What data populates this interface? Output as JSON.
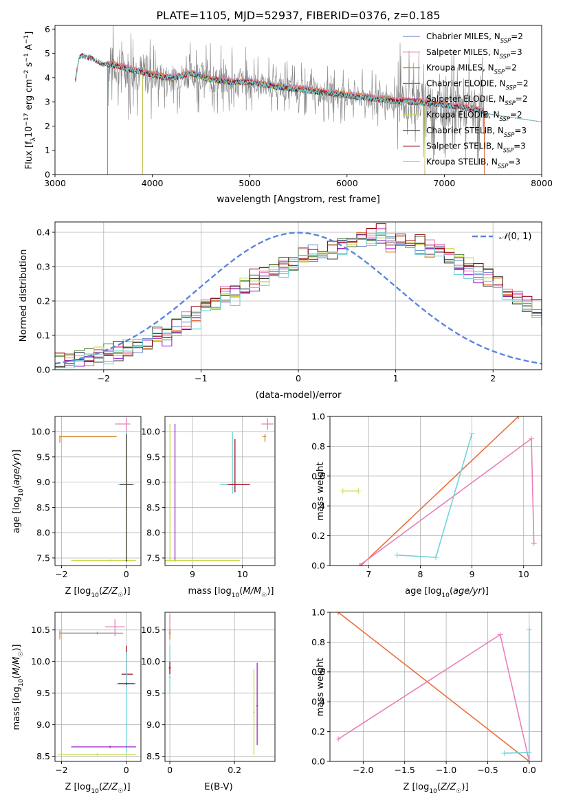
{
  "figure_title": "PLATE=1105, MJD=52937, FIBERID=0376, z=0.185",
  "colors": {
    "Chabrier MILES": "#7b94d3",
    "Salpeter MILES": "#e87fb8",
    "Kroupa MILES": "#cf8a2a",
    "Chabrier ELODIE": "#5c8a4a",
    "Salpeter ELODIE": "#9b28c9",
    "Kroupa ELODIE": "#cbd94a",
    "Chabrier STELIB": "#3a3a3a",
    "Salpeter STELIB": "#9e0a1a",
    "Kroupa STELIB": "#6fd3d8",
    "normal": "#5b86d9",
    "observed": "#808080",
    "model_orange": "#e8703a"
  },
  "chart_data": [
    {
      "type": "line",
      "name": "spectrum",
      "xlabel": "wavelength [Angstrom, rest frame]",
      "ylabel": "Flux [f_λ 10^-17 erg cm^-2 s^-1 A^-1]",
      "xlim": [
        3000,
        8000
      ],
      "ylim": [
        0,
        6.15
      ],
      "xticks": [
        3000,
        4000,
        5000,
        6000,
        7000,
        8000
      ],
      "yticks": [
        0,
        1,
        2,
        3,
        4,
        5,
        6
      ],
      "grid": false,
      "legend_position": "top-right",
      "legend": [
        {
          "label": "Chabrier MILES, N",
          "sub": "SSP",
          "tail": "=2",
          "key": "Chabrier MILES"
        },
        {
          "label": "Salpeter MILES, N",
          "sub": "SSP",
          "tail": "=3",
          "key": "Salpeter MILES"
        },
        {
          "label": "Kroupa MILES, N",
          "sub": "SSP",
          "tail": "=2",
          "key": "Kroupa MILES"
        },
        {
          "label": "Chabrier ELODIE, N",
          "sub": "SSP",
          "tail": "=2",
          "key": "Chabrier ELODIE"
        },
        {
          "label": "Salpeter ELODIE, N",
          "sub": "SSP",
          "tail": "=2",
          "key": "Salpeter ELODIE"
        },
        {
          "label": "Kroupa ELODIE, N",
          "sub": "SSP",
          "tail": "=2",
          "key": "Kroupa ELODIE"
        },
        {
          "label": "Chabrier STELIB, N",
          "sub": "SSP",
          "tail": "=3",
          "key": "Chabrier STELIB"
        },
        {
          "label": "Salpeter STELIB, N",
          "sub": "SSP",
          "tail": "=3",
          "key": "Salpeter STELIB"
        },
        {
          "label": "Kroupa STELIB, N",
          "sub": "SSP",
          "tail": "=3",
          "key": "Kroupa STELIB"
        }
      ],
      "continuum": [
        [
          3210,
          3.9
        ],
        [
          3250,
          4.85
        ],
        [
          3300,
          4.9
        ],
        [
          3400,
          4.75
        ],
        [
          3500,
          4.55
        ],
        [
          3600,
          4.5
        ],
        [
          3700,
          4.4
        ],
        [
          3800,
          4.3
        ],
        [
          3900,
          4.2
        ],
        [
          4000,
          4.1
        ],
        [
          4200,
          3.95
        ],
        [
          4400,
          4.15
        ],
        [
          4600,
          3.9
        ],
        [
          4800,
          3.8
        ],
        [
          5000,
          3.8
        ],
        [
          5200,
          3.65
        ],
        [
          5400,
          3.55
        ],
        [
          5600,
          3.45
        ],
        [
          5800,
          3.35
        ],
        [
          6000,
          3.25
        ],
        [
          6200,
          3.15
        ],
        [
          6400,
          3.05
        ],
        [
          6600,
          3.0
        ],
        [
          6800,
          2.95
        ],
        [
          7000,
          2.85
        ],
        [
          7200,
          2.75
        ],
        [
          7400,
          2.6
        ]
      ],
      "model_ranges": {
        "MILES": [
          3540,
          7410
        ],
        "ELODIE": [
          3900,
          6800
        ],
        "STELIB": [
          3210,
          8000
        ]
      }
    },
    {
      "type": "area",
      "name": "residual_histogram",
      "xlabel": "(data-model)/error",
      "ylabel": "Normed distribution",
      "xlim": [
        -2.5,
        2.5
      ],
      "ylim": [
        0,
        0.43
      ],
      "xticks": [
        -2,
        -1,
        0,
        1,
        2
      ],
      "yticks": [
        0.0,
        0.1,
        0.2,
        0.3,
        0.4
      ],
      "grid": true,
      "legend_position": "top-right",
      "legend_label": "N(0,1)",
      "bin_width": 0.1,
      "base_shape": [
        0.02,
        0.03,
        0.03,
        0.04,
        0.04,
        0.05,
        0.05,
        0.06,
        0.07,
        0.08,
        0.1,
        0.1,
        0.12,
        0.14,
        0.15,
        0.18,
        0.19,
        0.22,
        0.22,
        0.24,
        0.26,
        0.27,
        0.29,
        0.3,
        0.31,
        0.33,
        0.34,
        0.35,
        0.35,
        0.36,
        0.37,
        0.38,
        0.38,
        0.39,
        0.37,
        0.38,
        0.36,
        0.37,
        0.35,
        0.34,
        0.33,
        0.31,
        0.3,
        0.28,
        0.27,
        0.25,
        0.23,
        0.21,
        0.19,
        0.17,
        0.15,
        0.14,
        0.12,
        0.11,
        0.09,
        0.08,
        0.07,
        0.06,
        0.05,
        0.04,
        0.03,
        0.03,
        0.02,
        0.02,
        0.02,
        0.01,
        0.01,
        0.01,
        0.01,
        0.01
      ],
      "series_offsets": [
        0.0,
        0.008,
        -0.006,
        0.004,
        -0.008,
        0.006,
        -0.003,
        0.01,
        -0.01
      ],
      "series_order": [
        "Chabrier MILES",
        "Salpeter MILES",
        "model_orange",
        "Chabrier ELODIE",
        "Salpeter ELODIE",
        "Kroupa ELODIE",
        "Chabrier STELIB",
        "Salpeter STELIB",
        "Kroupa STELIB"
      ]
    },
    {
      "type": "scatter",
      "name": "age_vs_Z",
      "xlabel": "Z [log10(Z/Z☉)]",
      "ylabel": "age [log10(age/yr)]",
      "xlim": [
        -2.2,
        0.45
      ],
      "ylim": [
        7.35,
        10.3
      ],
      "xticks": [
        -2,
        0
      ],
      "yticks": [
        7.5,
        8.0,
        8.5,
        9.0,
        9.5,
        10.0
      ],
      "grid": true
    },
    {
      "type": "scatter",
      "name": "age_vs_mass",
      "xlabel": "mass [log10(M/M☉)]",
      "ylabel": "",
      "xlim": [
        8.45,
        10.65
      ],
      "ylim": [
        7.35,
        10.3
      ],
      "xticks": [
        9,
        10
      ],
      "yticks": [
        7.5,
        8.0,
        8.5,
        9.0,
        9.5,
        10.0
      ],
      "grid": true
    },
    {
      "type": "line",
      "name": "massweight_vs_age",
      "xlabel": "age [log10(age/yr)]",
      "ylabel": "mass weight",
      "xlim": [
        6.25,
        10.35
      ],
      "ylim": [
        0,
        1
      ],
      "xticks": [
        7,
        8,
        9,
        10
      ],
      "yticks": [
        0.0,
        0.2,
        0.4,
        0.6,
        0.8,
        1.0
      ],
      "grid": true,
      "series": [
        {
          "name": "Kroupa MILES",
          "x": [
            6.85,
            9.9
          ],
          "y": [
            0.0,
            1.0
          ]
        },
        {
          "name": "Salpeter MILES",
          "x": [
            6.82,
            10.15,
            10.2
          ],
          "y": [
            0.0,
            0.85,
            0.15
          ]
        },
        {
          "name": "Kroupa STELIB",
          "x": [
            7.55,
            8.3,
            9.0
          ],
          "y": [
            0.07,
            0.055,
            0.885
          ]
        },
        {
          "name": "Kroupa ELODIE",
          "x": [
            6.5,
            6.8
          ],
          "y": [
            0.5,
            0.5
          ]
        }
      ]
    },
    {
      "type": "scatter",
      "name": "mass_vs_Z",
      "xlabel": "Z [log10(Z/Z☉)]",
      "ylabel": "mass [log10(M/M☉)]",
      "xlim": [
        -2.2,
        0.45
      ],
      "ylim": [
        8.42,
        10.78
      ],
      "xticks": [
        -2,
        0
      ],
      "yticks": [
        8.5,
        9.0,
        9.5,
        10.0,
        10.5
      ],
      "grid": true
    },
    {
      "type": "scatter",
      "name": "mass_vs_EBV",
      "xlabel": "E(B-V)",
      "ylabel": "",
      "xlim": [
        -0.015,
        0.325
      ],
      "ylim": [
        8.42,
        10.78
      ],
      "xticks": [
        0.0,
        0.2
      ],
      "yticks": [
        8.5,
        9.0,
        9.5,
        10.0,
        10.5
      ],
      "grid": true
    },
    {
      "type": "line",
      "name": "massweight_vs_Z",
      "xlabel": "Z [log10(Z/Z☉)]",
      "ylabel": "mass weight",
      "xlim": [
        -2.4,
        0.15
      ],
      "ylim": [
        0,
        1
      ],
      "xticks": [
        -2.0,
        -1.5,
        -1.0,
        -0.5,
        0.0
      ],
      "yticks": [
        0.0,
        0.2,
        0.4,
        0.6,
        0.8,
        1.0
      ],
      "grid": true,
      "series": [
        {
          "name": "Kroupa MILES",
          "x": [
            -2.3,
            0.0
          ],
          "y": [
            1.0,
            0.0
          ]
        },
        {
          "name": "Salpeter MILES",
          "x": [
            -2.3,
            -0.35,
            0.0
          ],
          "y": [
            0.15,
            0.85,
            0.0
          ]
        },
        {
          "name": "Kroupa STELIB",
          "x": [
            -0.3,
            0.0,
            0.0,
            0.0
          ],
          "y": [
            0.055,
            0.06,
            0.885,
            0.0
          ]
        }
      ]
    }
  ]
}
